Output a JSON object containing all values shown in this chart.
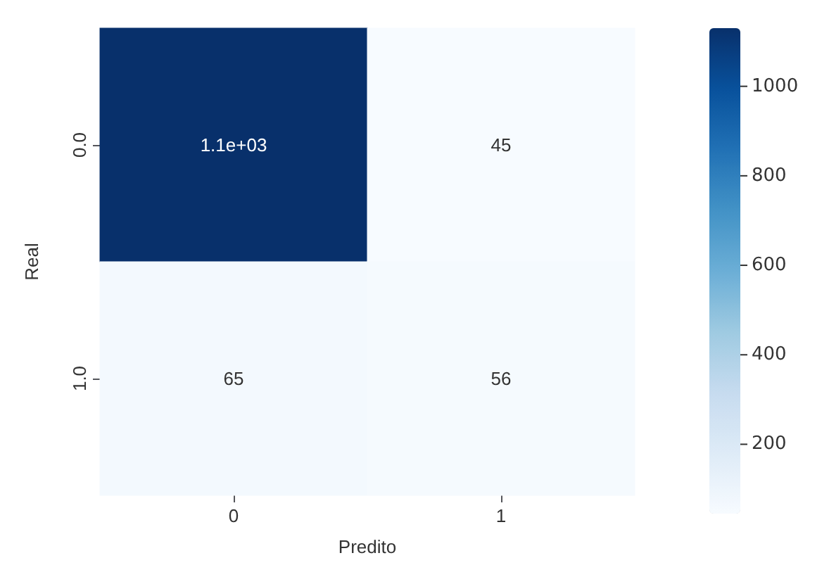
{
  "chart_data": {
    "type": "heatmap",
    "xlabel": "Predito",
    "ylabel": "Real",
    "categories": [
      "0",
      "1"
    ],
    "y_categories": [
      "0.0",
      "1.0"
    ],
    "cells": [
      [
        1130,
        45
      ],
      [
        65,
        56
      ]
    ],
    "cell_labels": [
      [
        "1.1e+03",
        "45"
      ],
      [
        "65",
        "56"
      ]
    ],
    "clim": [
      45,
      1130
    ],
    "cticks": [
      200,
      400,
      600,
      800,
      1000
    ]
  }
}
